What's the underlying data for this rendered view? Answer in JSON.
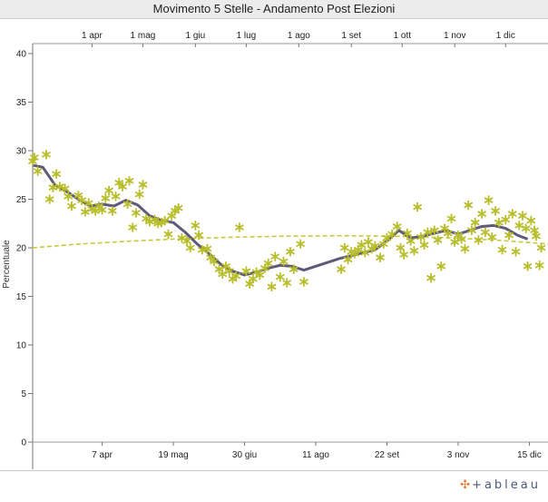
{
  "title": "Movimento 5 Stelle - Andamento Post Elezioni",
  "brand": "+ableau",
  "brand_icon": "tableau-logo-icon",
  "colors": {
    "trend": "#5f5a78",
    "points": "#b8bd2a",
    "fit": "#c8c83c",
    "axis": "#555555"
  },
  "chart_data": {
    "type": "scatter",
    "title": "Movimento 5 Stelle - Andamento Post Elezioni",
    "ylabel": "Percentuale",
    "xlabel": "",
    "ylim": [
      0,
      40
    ],
    "xlim": [
      "2013-02-25",
      "2013-12-26"
    ],
    "yticks": [
      0,
      5,
      10,
      15,
      20,
      25,
      30,
      35,
      40
    ],
    "top_ticks": [
      {
        "date": "2013-04-01",
        "label": "1 apr"
      },
      {
        "date": "2013-05-01",
        "label": "1 mag"
      },
      {
        "date": "2013-06-01",
        "label": "1 giu"
      },
      {
        "date": "2013-07-01",
        "label": "1 lug"
      },
      {
        "date": "2013-08-01",
        "label": "1 ago"
      },
      {
        "date": "2013-09-01",
        "label": "1 set"
      },
      {
        "date": "2013-10-01",
        "label": "1 ott"
      },
      {
        "date": "2013-11-01",
        "label": "1 nov"
      },
      {
        "date": "2013-12-01",
        "label": "1 dic"
      }
    ],
    "bottom_ticks": [
      {
        "date": "2013-04-07",
        "label": "7 apr"
      },
      {
        "date": "2013-05-19",
        "label": "19 mag"
      },
      {
        "date": "2013-06-30",
        "label": "30 giu"
      },
      {
        "date": "2013-08-11",
        "label": "11 ago"
      },
      {
        "date": "2013-09-22",
        "label": "22 set"
      },
      {
        "date": "2013-11-03",
        "label": "3 nov"
      },
      {
        "date": "2013-12-15",
        "label": "15 dic"
      }
    ],
    "trend_line": [
      [
        "2013-02-25",
        28.5
      ],
      [
        "2013-03-03",
        28.3
      ],
      [
        "2013-03-10",
        26.5
      ],
      [
        "2013-03-17",
        25.8
      ],
      [
        "2013-03-24",
        25.0
      ],
      [
        "2013-03-31",
        24.3
      ],
      [
        "2013-04-07",
        24.5
      ],
      [
        "2013-04-14",
        24.3
      ],
      [
        "2013-04-21",
        24.9
      ],
      [
        "2013-04-28",
        24.4
      ],
      [
        "2013-05-05",
        23.3
      ],
      [
        "2013-05-12",
        22.8
      ],
      [
        "2013-05-19",
        22.6
      ],
      [
        "2013-05-26",
        21.6
      ],
      [
        "2013-06-02",
        20.4
      ],
      [
        "2013-06-09",
        19.4
      ],
      [
        "2013-06-16",
        18.3
      ],
      [
        "2013-06-23",
        17.6
      ],
      [
        "2013-06-30",
        17.2
      ],
      [
        "2013-07-07",
        17.5
      ],
      [
        "2013-07-14",
        17.9
      ],
      [
        "2013-07-21",
        18.2
      ],
      [
        "2013-07-28",
        18.1
      ],
      [
        "2013-08-04",
        17.7
      ],
      [
        "2013-08-11",
        18.1
      ],
      [
        "2013-08-18",
        18.5
      ],
      [
        "2013-08-25",
        18.9
      ],
      [
        "2013-09-01",
        19.2
      ],
      [
        "2013-09-08",
        19.5
      ],
      [
        "2013-09-15",
        19.8
      ],
      [
        "2013-09-22",
        20.7
      ],
      [
        "2013-09-29",
        21.8
      ],
      [
        "2013-10-06",
        21.0
      ],
      [
        "2013-10-13",
        21.2
      ],
      [
        "2013-10-20",
        21.5
      ],
      [
        "2013-10-27",
        21.8
      ],
      [
        "2013-11-03",
        21.4
      ],
      [
        "2013-11-10",
        21.8
      ],
      [
        "2013-11-17",
        22.2
      ],
      [
        "2013-11-24",
        22.3
      ],
      [
        "2013-12-01",
        22.0
      ],
      [
        "2013-12-08",
        21.3
      ],
      [
        "2013-12-14",
        20.9
      ]
    ],
    "fit_curve": [
      [
        "2013-02-25",
        20.0
      ],
      [
        "2013-03-25",
        20.4
      ],
      [
        "2013-04-25",
        20.7
      ],
      [
        "2013-05-25",
        20.95
      ],
      [
        "2013-06-25",
        21.1
      ],
      [
        "2013-07-25",
        21.2
      ],
      [
        "2013-08-25",
        21.25
      ],
      [
        "2013-09-25",
        21.2
      ],
      [
        "2013-10-25",
        21.05
      ],
      [
        "2013-11-25",
        20.8
      ],
      [
        "2013-12-26",
        20.4
      ]
    ],
    "points": [
      [
        "2013-02-25",
        28.9
      ],
      [
        "2013-02-26",
        29.3
      ],
      [
        "2013-02-28",
        27.9
      ],
      [
        "2013-03-05",
        29.6
      ],
      [
        "2013-03-07",
        25.0
      ],
      [
        "2013-03-09",
        26.2
      ],
      [
        "2013-03-11",
        27.6
      ],
      [
        "2013-03-13",
        26.3
      ],
      [
        "2013-03-16",
        26.1
      ],
      [
        "2013-03-18",
        25.3
      ],
      [
        "2013-03-20",
        24.3
      ],
      [
        "2013-03-24",
        25.4
      ],
      [
        "2013-03-26",
        24.9
      ],
      [
        "2013-03-28",
        23.7
      ],
      [
        "2013-03-30",
        24.6
      ],
      [
        "2013-04-01",
        24.0
      ],
      [
        "2013-04-03",
        23.8
      ],
      [
        "2013-04-05",
        24.3
      ],
      [
        "2013-04-07",
        23.9
      ],
      [
        "2013-04-09",
        25.1
      ],
      [
        "2013-04-11",
        25.9
      ],
      [
        "2013-04-13",
        23.8
      ],
      [
        "2013-04-15",
        25.3
      ],
      [
        "2013-04-17",
        26.7
      ],
      [
        "2013-04-19",
        26.3
      ],
      [
        "2013-04-22",
        24.5
      ],
      [
        "2013-04-23",
        26.9
      ],
      [
        "2013-04-25",
        22.1
      ],
      [
        "2013-04-27",
        23.6
      ],
      [
        "2013-04-29",
        25.5
      ],
      [
        "2013-05-01",
        26.5
      ],
      [
        "2013-05-03",
        23.0
      ],
      [
        "2013-05-05",
        22.7
      ],
      [
        "2013-05-08",
        22.9
      ],
      [
        "2013-05-10",
        22.5
      ],
      [
        "2013-05-12",
        22.6
      ],
      [
        "2013-05-14",
        22.8
      ],
      [
        "2013-05-16",
        21.4
      ],
      [
        "2013-05-18",
        23.3
      ],
      [
        "2013-05-20",
        23.8
      ],
      [
        "2013-05-22",
        24.1
      ],
      [
        "2013-05-24",
        21.0
      ],
      [
        "2013-05-27",
        20.7
      ],
      [
        "2013-05-29",
        20.0
      ],
      [
        "2013-06-01",
        22.3
      ],
      [
        "2013-06-03",
        21.3
      ],
      [
        "2013-06-05",
        19.8
      ],
      [
        "2013-06-08",
        19.9
      ],
      [
        "2013-06-10",
        19.0
      ],
      [
        "2013-06-12",
        18.6
      ],
      [
        "2013-06-15",
        17.8
      ],
      [
        "2013-06-17",
        17.3
      ],
      [
        "2013-06-19",
        18.1
      ],
      [
        "2013-06-21",
        17.6
      ],
      [
        "2013-06-23",
        16.8
      ],
      [
        "2013-06-25",
        17.1
      ],
      [
        "2013-06-27",
        22.1
      ],
      [
        "2013-07-01",
        17.6
      ],
      [
        "2013-07-03",
        16.3
      ],
      [
        "2013-07-05",
        16.8
      ],
      [
        "2013-07-07",
        17.5
      ],
      [
        "2013-07-09",
        17.2
      ],
      [
        "2013-07-12",
        17.9
      ],
      [
        "2013-07-14",
        18.4
      ],
      [
        "2013-07-16",
        16.0
      ],
      [
        "2013-07-18",
        19.1
      ],
      [
        "2013-07-21",
        17.0
      ],
      [
        "2013-07-23",
        18.6
      ],
      [
        "2013-07-25",
        16.4
      ],
      [
        "2013-07-27",
        19.6
      ],
      [
        "2013-07-29",
        17.8
      ],
      [
        "2013-08-02",
        20.4
      ],
      [
        "2013-08-04",
        16.5
      ],
      [
        "2013-08-26",
        17.8
      ],
      [
        "2013-08-28",
        20.0
      ],
      [
        "2013-08-30",
        18.8
      ],
      [
        "2013-09-01",
        19.6
      ],
      [
        "2013-09-03",
        19.4
      ],
      [
        "2013-09-05",
        19.8
      ],
      [
        "2013-09-07",
        20.3
      ],
      [
        "2013-09-09",
        19.5
      ],
      [
        "2013-09-11",
        20.6
      ],
      [
        "2013-09-13",
        19.9
      ],
      [
        "2013-09-15",
        20.2
      ],
      [
        "2013-09-18",
        19.0
      ],
      [
        "2013-09-20",
        20.4
      ],
      [
        "2013-09-22",
        21.0
      ],
      [
        "2013-09-25",
        21.4
      ],
      [
        "2013-09-28",
        22.2
      ],
      [
        "2013-09-30",
        20.0
      ],
      [
        "2013-10-02",
        19.3
      ],
      [
        "2013-10-04",
        21.5
      ],
      [
        "2013-10-06",
        20.7
      ],
      [
        "2013-10-08",
        19.7
      ],
      [
        "2013-10-10",
        24.2
      ],
      [
        "2013-10-12",
        21.1
      ],
      [
        "2013-10-14",
        20.3
      ],
      [
        "2013-10-16",
        21.6
      ],
      [
        "2013-10-18",
        16.9
      ],
      [
        "2013-10-20",
        21.8
      ],
      [
        "2013-10-22",
        20.8
      ],
      [
        "2013-10-24",
        18.1
      ],
      [
        "2013-10-26",
        22.0
      ],
      [
        "2013-10-28",
        21.5
      ],
      [
        "2013-10-30",
        23.0
      ],
      [
        "2013-11-01",
        20.6
      ],
      [
        "2013-11-03",
        21.3
      ],
      [
        "2013-11-05",
        20.9
      ],
      [
        "2013-11-07",
        19.9
      ],
      [
        "2013-11-09",
        24.4
      ],
      [
        "2013-11-11",
        21.8
      ],
      [
        "2013-11-13",
        22.6
      ],
      [
        "2013-11-15",
        20.8
      ],
      [
        "2013-11-17",
        23.5
      ],
      [
        "2013-11-19",
        21.6
      ],
      [
        "2013-11-21",
        24.9
      ],
      [
        "2013-11-23",
        21.1
      ],
      [
        "2013-11-25",
        23.8
      ],
      [
        "2013-11-27",
        22.6
      ],
      [
        "2013-11-29",
        19.8
      ],
      [
        "2013-12-01",
        22.9
      ],
      [
        "2013-12-03",
        21.3
      ],
      [
        "2013-12-05",
        23.5
      ],
      [
        "2013-12-07",
        19.6
      ],
      [
        "2013-12-09",
        22.3
      ],
      [
        "2013-12-11",
        23.3
      ],
      [
        "2013-12-13",
        22.0
      ],
      [
        "2013-12-14",
        18.1
      ],
      [
        "2013-12-16",
        22.8
      ],
      [
        "2013-12-18",
        21.8
      ],
      [
        "2013-12-19",
        21.2
      ],
      [
        "2013-12-21",
        18.2
      ],
      [
        "2013-12-22",
        20.0
      ]
    ],
    "grid": false
  }
}
